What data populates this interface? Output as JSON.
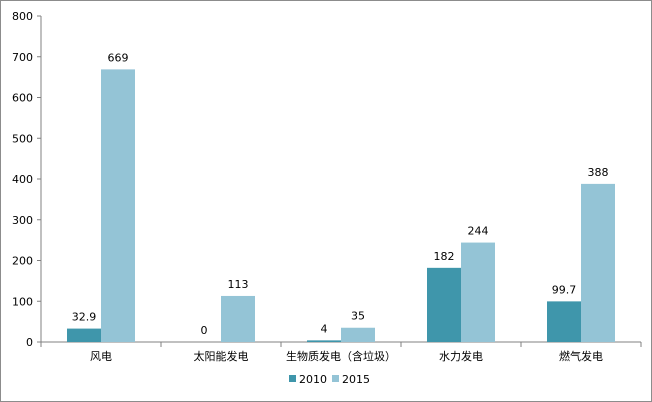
{
  "chart_data": {
    "type": "bar",
    "categories": [
      "风电",
      "太阳能发电",
      "生物质发电（含垃圾）",
      "水力发电",
      "燃气发电"
    ],
    "series": [
      {
        "name": "2010",
        "values": [
          32.9,
          0,
          4,
          182,
          99.7
        ],
        "labels": [
          "32.9",
          "0",
          "4",
          "182",
          "99.7"
        ],
        "color": "#3f96ab"
      },
      {
        "name": "2015",
        "values": [
          669,
          113,
          35,
          244,
          388
        ],
        "labels": [
          "669",
          "113",
          "35",
          "244",
          "388"
        ],
        "color": "#94c4d6"
      }
    ],
    "ylim": [
      0,
      800
    ],
    "yticks": [
      0,
      100,
      200,
      300,
      400,
      500,
      600,
      700,
      800
    ],
    "grid": false,
    "legend_position": "bottom"
  }
}
